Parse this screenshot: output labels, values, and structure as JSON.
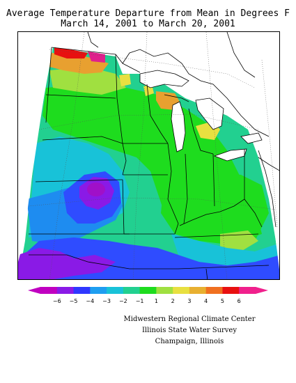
{
  "title": {
    "line1": "Average Temperature Departure from Mean in Degrees F",
    "line2": "March 14, 2001 to March 20, 2001"
  },
  "legend": {
    "ticks": [
      "−6",
      "−5",
      "−4",
      "−3",
      "−2",
      "−1",
      "1",
      "2",
      "3",
      "4",
      "5",
      "6"
    ],
    "colors": [
      "#c000c0",
      "#8a1ae6",
      "#2f37ff",
      "#1e9ef0",
      "#18c2d8",
      "#22d090",
      "#1edc1e",
      "#a0e040",
      "#e8e040",
      "#e8b030",
      "#f07020",
      "#e81010",
      "#f0208c"
    ]
  },
  "credits": {
    "line1": "Midwestern Regional Climate Center",
    "line2": "Illinois State Water Survey",
    "line3": "Champaign, Illinois"
  },
  "map": {
    "colors": {
      "purple_deep": "#a010c8",
      "purple": "#8a1ae6",
      "blue": "#2f4cff",
      "blue_mid": "#1e8cf0",
      "cyan": "#18c2d8",
      "teal": "#22d090",
      "green": "#1edc1e",
      "yellow_green": "#a0e040",
      "yellow": "#e8e040",
      "orange": "#e8a030",
      "orange_dark": "#f07020",
      "red": "#e81010",
      "magenta": "#e0208c",
      "land_white": "#ffffff",
      "border_line": "#000000",
      "grid_line": "#666666"
    }
  }
}
